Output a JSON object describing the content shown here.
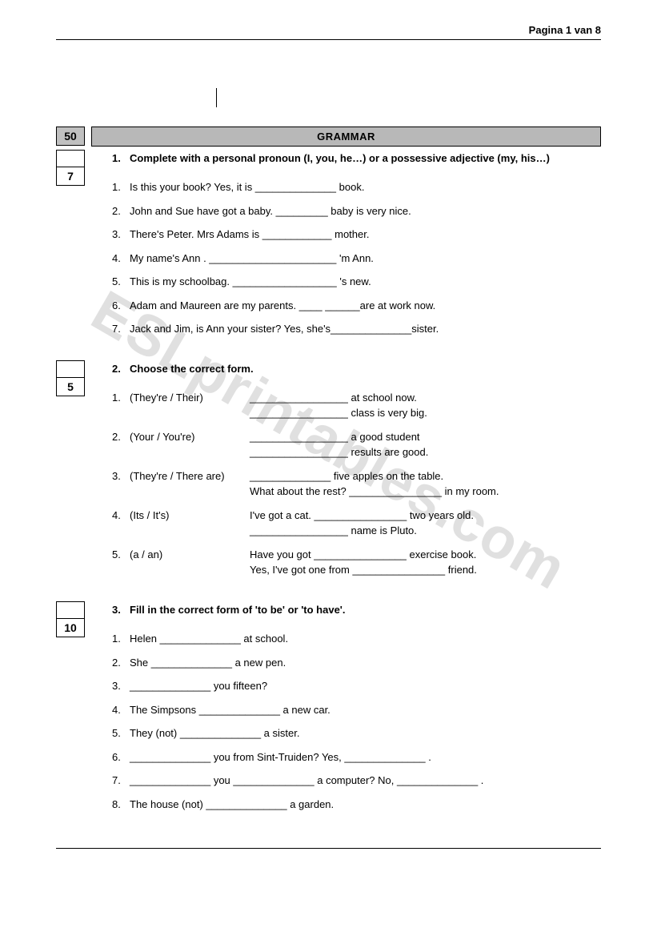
{
  "page_header": "Pagina 1 van 8",
  "section_title": "GRAMMAR",
  "total_score": "50",
  "watermark": "ESLprintables.com",
  "exercises": [
    {
      "points": "7",
      "number": "1.",
      "heading": "Complete with a personal pronoun (I, you, he…) or a possessive adjective (my, his…)",
      "type": "simple",
      "items": [
        "Is this your book? Yes, it is ______________ book.",
        "John and Sue have got a baby. _________ baby is very nice.",
        "There's Peter. Mrs Adams is ____________ mother.",
        "My name's Ann .   ______________________ 'm Ann.",
        "This is my schoolbag. __________________ 's new.",
        "Adam and Maureen are my parents. ____ ______are at work now.",
        "Jack and Jim, is Ann your sister? Yes, she's______________sister."
      ]
    },
    {
      "points": "5",
      "number": "2.",
      "heading": "Choose the correct form.",
      "type": "pairs",
      "items": [
        {
          "opt": "(They're / Their)",
          "l1": "_________________ at school now.",
          "l2": "_________________ class is very big."
        },
        {
          "opt": "(Your / You're)",
          "l1": "_________________ a good student",
          "l2": "_________________ results are good."
        },
        {
          "opt": "(They're / There are)",
          "l1": "______________ five apples on the table.",
          "l2": "What about the rest? ________________ in my room."
        },
        {
          "opt": "(Its / It's)",
          "l1": "I've got a cat. ________________ two years old.",
          "l2": "_________________ name is Pluto."
        },
        {
          "opt": "(a / an)",
          "l1": "Have you got ________________ exercise book.",
          "l2": "Yes, I've got one from ________________ friend."
        }
      ]
    },
    {
      "points": "10",
      "number": "3.",
      "heading": "Fill in the correct form of 'to be' or 'to have'.",
      "type": "simple",
      "items": [
        "Helen ______________ at school.",
        "She ______________ a new pen.",
        "______________ you  fifteen?",
        "The Simpsons ______________ a new car.",
        "They (not) ______________ a sister.",
        "______________ you from Sint-Truiden? Yes, ______________ .",
        "______________ you ______________ a computer? No, ______________ .",
        "The house (not) ______________ a garden."
      ]
    }
  ]
}
